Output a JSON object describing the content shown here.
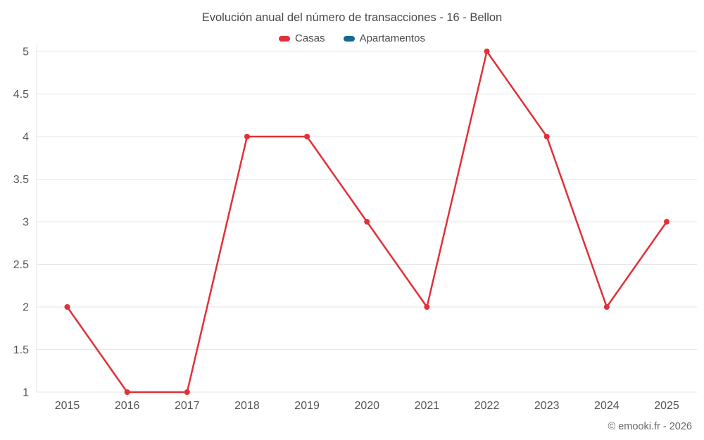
{
  "chart_data": {
    "type": "line",
    "title": "Evolución anual del número de transacciones - 16 - Bellon",
    "x": [
      2015,
      2016,
      2017,
      2018,
      2019,
      2020,
      2021,
      2022,
      2023,
      2024,
      2025
    ],
    "series": [
      {
        "name": "Casas",
        "color": "#e03038",
        "values": [
          2,
          1,
          1,
          4,
          4,
          3,
          2,
          5,
          4,
          2,
          3
        ]
      },
      {
        "name": "Apartamentos",
        "color": "#17698e",
        "values": []
      }
    ],
    "ylim": [
      1,
      5
    ],
    "yticks": [
      1,
      1.5,
      2,
      2.5,
      3,
      3.5,
      4,
      4.5,
      5
    ],
    "grid": true,
    "legend_position": "top",
    "xlabel": "",
    "ylabel": ""
  },
  "footer": {
    "credit": "© emooki.fr - 2026"
  },
  "style": {
    "grid_color": "#e6e6e6",
    "tick_label_color": "#555555",
    "marker_radius": 4,
    "line_width": 2.5
  }
}
